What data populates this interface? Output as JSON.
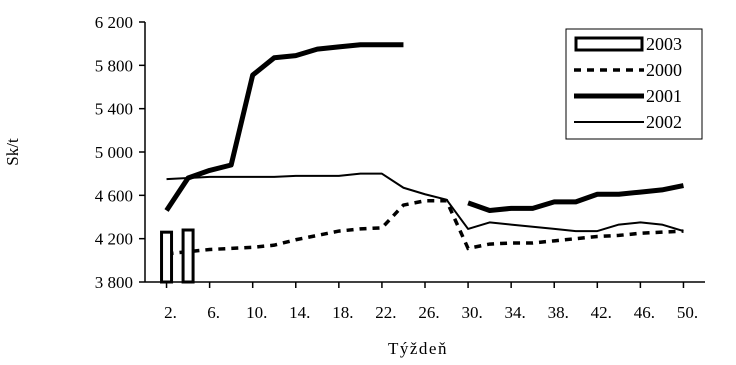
{
  "chart_data": {
    "type": "line",
    "xlabel": "Týždeň",
    "ylabel": "Sk/t",
    "ylim": [
      3800,
      6200
    ],
    "yticks": [
      3800,
      4200,
      4600,
      5000,
      5400,
      5800,
      6200
    ],
    "ytick_labels": [
      "3 800",
      "4 200",
      "4 600",
      "5 000",
      "5 400",
      "5 800",
      "6 200"
    ],
    "xlim": [
      0,
      52
    ],
    "xticks": [
      2,
      6,
      10,
      14,
      18,
      22,
      26,
      30,
      34,
      38,
      42,
      46,
      50
    ],
    "xtick_labels": [
      "2.",
      "6.",
      "10.",
      "14.",
      "18.",
      "22.",
      "26.",
      "30.",
      "34.",
      "38.",
      "42.",
      "46.",
      "50."
    ],
    "grid": false,
    "legend_position": "top-right",
    "series": [
      {
        "name": "2003",
        "style": "bar",
        "x": [
          2,
          4
        ],
        "values": [
          4260,
          4280
        ]
      },
      {
        "name": "2000",
        "style": "dashed",
        "x": [
          2,
          4,
          6,
          8,
          10,
          12,
          14,
          16,
          18,
          20,
          22,
          24,
          26,
          28,
          30,
          32,
          34,
          36,
          38,
          40,
          42,
          44,
          46,
          48,
          50
        ],
        "values": [
          4060,
          4080,
          4100,
          4110,
          4120,
          4140,
          4190,
          4230,
          4270,
          4290,
          4300,
          4510,
          4550,
          4550,
          4110,
          4150,
          4160,
          4160,
          4180,
          4200,
          4220,
          4230,
          4250,
          4260,
          4270
        ]
      },
      {
        "name": "2001",
        "style": "thick",
        "x": [
          2,
          4,
          6,
          8,
          10,
          12,
          14,
          16,
          18,
          20,
          22,
          24,
          30,
          32,
          34,
          36,
          38,
          40,
          42,
          44,
          46,
          48,
          50
        ],
        "values": [
          4460,
          4760,
          4830,
          4880,
          5710,
          5870,
          5890,
          5950,
          5970,
          5990,
          5990,
          5990,
          4530,
          4460,
          4480,
          4480,
          4540,
          4540,
          4610,
          4610,
          4630,
          4650,
          4690
        ]
      },
      {
        "name": "2002",
        "style": "thin",
        "x": [
          2,
          4,
          6,
          8,
          10,
          12,
          14,
          16,
          18,
          20,
          22,
          24,
          26,
          28,
          30,
          32,
          34,
          36,
          38,
          40,
          42,
          44,
          46,
          48,
          50
        ],
        "values": [
          4750,
          4760,
          4770,
          4770,
          4770,
          4770,
          4780,
          4780,
          4780,
          4800,
          4800,
          4670,
          4610,
          4560,
          4290,
          4350,
          4330,
          4310,
          4290,
          4270,
          4270,
          4330,
          4350,
          4330,
          4270
        ]
      }
    ]
  }
}
